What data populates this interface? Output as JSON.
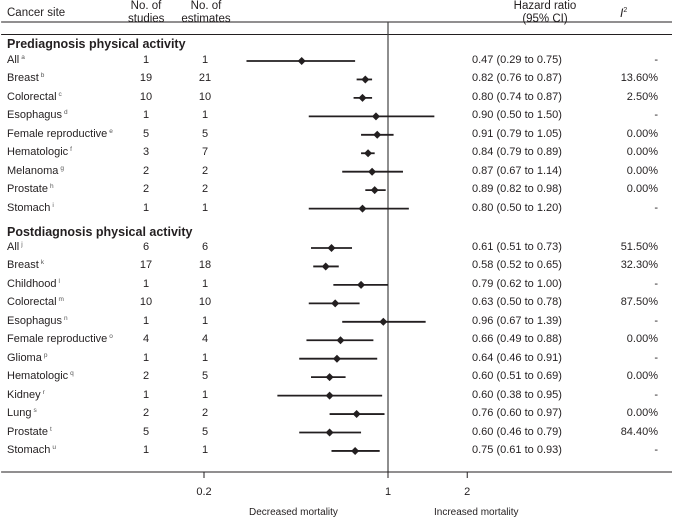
{
  "chart_data": {
    "type": "forest",
    "headers": {
      "site": "Cancer site",
      "studies_1": "No. of",
      "studies_2": "studies",
      "estimates_1": "No. of",
      "estimates_2": "estimates",
      "hr_1": "Hazard ratio",
      "hr_2": "(95% CI)",
      "i2_base": "I",
      "i2_sup": "2"
    },
    "sections": [
      {
        "title": "Prediagnosis physical activity",
        "rows": [
          {
            "site": "All",
            "note": "a",
            "studies": "1",
            "estimates": "1",
            "hr": 0.47,
            "lo": 0.29,
            "hi": 0.75,
            "hr_text": "0.47 (0.29 to 0.75)",
            "i2": "-"
          },
          {
            "site": "Breast",
            "note": "b",
            "studies": "19",
            "estimates": "21",
            "hr": 0.82,
            "lo": 0.76,
            "hi": 0.87,
            "hr_text": "0.82 (0.76 to 0.87)",
            "i2": "13.60%"
          },
          {
            "site": "Colorectal",
            "note": "c",
            "studies": "10",
            "estimates": "10",
            "hr": 0.8,
            "lo": 0.74,
            "hi": 0.87,
            "hr_text": "0.80 (0.74 to 0.87)",
            "i2": "2.50%"
          },
          {
            "site": "Esophagus",
            "note": "d",
            "studies": "1",
            "estimates": "1",
            "hr": 0.9,
            "lo": 0.5,
            "hi": 1.5,
            "hr_text": "0.90 (0.50 to 1.50)",
            "i2": "-"
          },
          {
            "site": "Female reproductive",
            "note": "e",
            "studies": "5",
            "estimates": "5",
            "hr": 0.91,
            "lo": 0.79,
            "hi": 1.05,
            "hr_text": "0.91 (0.79 to 1.05)",
            "i2": "0.00%"
          },
          {
            "site": "Hematologic",
            "note": "f",
            "studies": "3",
            "estimates": "7",
            "hr": 0.84,
            "lo": 0.79,
            "hi": 0.89,
            "hr_text": "0.84 (0.79 to 0.89)",
            "i2": "0.00%"
          },
          {
            "site": "Melanoma",
            "note": "g",
            "studies": "2",
            "estimates": "2",
            "hr": 0.87,
            "lo": 0.67,
            "hi": 1.14,
            "hr_text": "0.87 (0.67 to 1.14)",
            "i2": "0.00%"
          },
          {
            "site": "Prostate",
            "note": "h",
            "studies": "2",
            "estimates": "2",
            "hr": 0.89,
            "lo": 0.82,
            "hi": 0.98,
            "hr_text": "0.89 (0.82 to 0.98)",
            "i2": "0.00%"
          },
          {
            "site": "Stomach",
            "note": "i",
            "studies": "1",
            "estimates": "1",
            "hr": 0.8,
            "lo": 0.5,
            "hi": 1.2,
            "hr_text": "0.80 (0.50 to 1.20)",
            "i2": "-"
          }
        ]
      },
      {
        "title": "Postdiagnosis physical activity",
        "rows": [
          {
            "site": "All",
            "note": "j",
            "studies": "6",
            "estimates": "6",
            "hr": 0.61,
            "lo": 0.51,
            "hi": 0.73,
            "hr_text": "0.61 (0.51 to 0.73)",
            "i2": "51.50%"
          },
          {
            "site": "Breast",
            "note": "k",
            "studies": "17",
            "estimates": "18",
            "hr": 0.58,
            "lo": 0.52,
            "hi": 0.65,
            "hr_text": "0.58 (0.52 to 0.65)",
            "i2": "32.30%"
          },
          {
            "site": "Childhood",
            "note": "l",
            "studies": "1",
            "estimates": "1",
            "hr": 0.79,
            "lo": 0.62,
            "hi": 1.0,
            "hr_text": "0.79 (0.62 to 1.00)",
            "i2": "-"
          },
          {
            "site": "Colorectal",
            "note": "m",
            "studies": "10",
            "estimates": "10",
            "hr": 0.63,
            "lo": 0.5,
            "hi": 0.78,
            "hr_text": "0.63 (0.50 to 0.78)",
            "i2": "87.50%"
          },
          {
            "site": "Esophagus",
            "note": "n",
            "studies": "1",
            "estimates": "1",
            "hr": 0.96,
            "lo": 0.67,
            "hi": 1.39,
            "hr_text": "0.96 (0.67 to 1.39)",
            "i2": "-"
          },
          {
            "site": "Female reproductive",
            "note": "o",
            "studies": "4",
            "estimates": "4",
            "hr": 0.66,
            "lo": 0.49,
            "hi": 0.88,
            "hr_text": "0.66 (0.49 to 0.88)",
            "i2": "0.00%"
          },
          {
            "site": "Glioma",
            "note": "p",
            "studies": "1",
            "estimates": "1",
            "hr": 0.64,
            "lo": 0.46,
            "hi": 0.91,
            "hr_text": "0.64 (0.46 to 0.91)",
            "i2": "-"
          },
          {
            "site": "Hematologic",
            "note": "q",
            "studies": "2",
            "estimates": "5",
            "hr": 0.6,
            "lo": 0.51,
            "hi": 0.69,
            "hr_text": "0.60 (0.51 to 0.69)",
            "i2": "0.00%"
          },
          {
            "site": "Kidney",
            "note": "r",
            "studies": "1",
            "estimates": "1",
            "hr": 0.6,
            "lo": 0.38,
            "hi": 0.95,
            "hr_text": "0.60 (0.38 to 0.95)",
            "i2": "-"
          },
          {
            "site": "Lung",
            "note": "s",
            "studies": "2",
            "estimates": "2",
            "hr": 0.76,
            "lo": 0.6,
            "hi": 0.97,
            "hr_text": "0.76 (0.60 to 0.97)",
            "i2": "0.00%"
          },
          {
            "site": "Prostate",
            "note": "t",
            "studies": "5",
            "estimates": "5",
            "hr": 0.6,
            "lo": 0.46,
            "hi": 0.79,
            "hr_text": "0.60 (0.46 to 0.79)",
            "i2": "84.40%"
          },
          {
            "site": "Stomach",
            "note": "u",
            "studies": "1",
            "estimates": "1",
            "hr": 0.75,
            "lo": 0.61,
            "hi": 0.93,
            "hr_text": "0.75 (0.61 to 0.93)",
            "i2": "-"
          }
        ]
      }
    ],
    "x_scale": "log",
    "x_ticks": [
      0.2,
      1,
      2
    ],
    "x_tick_labels": [
      "0.2",
      "1",
      "2"
    ],
    "reference_line": 1,
    "xlabel_left": "Decreased mortality",
    "xlabel_right": "Increased mortality"
  }
}
